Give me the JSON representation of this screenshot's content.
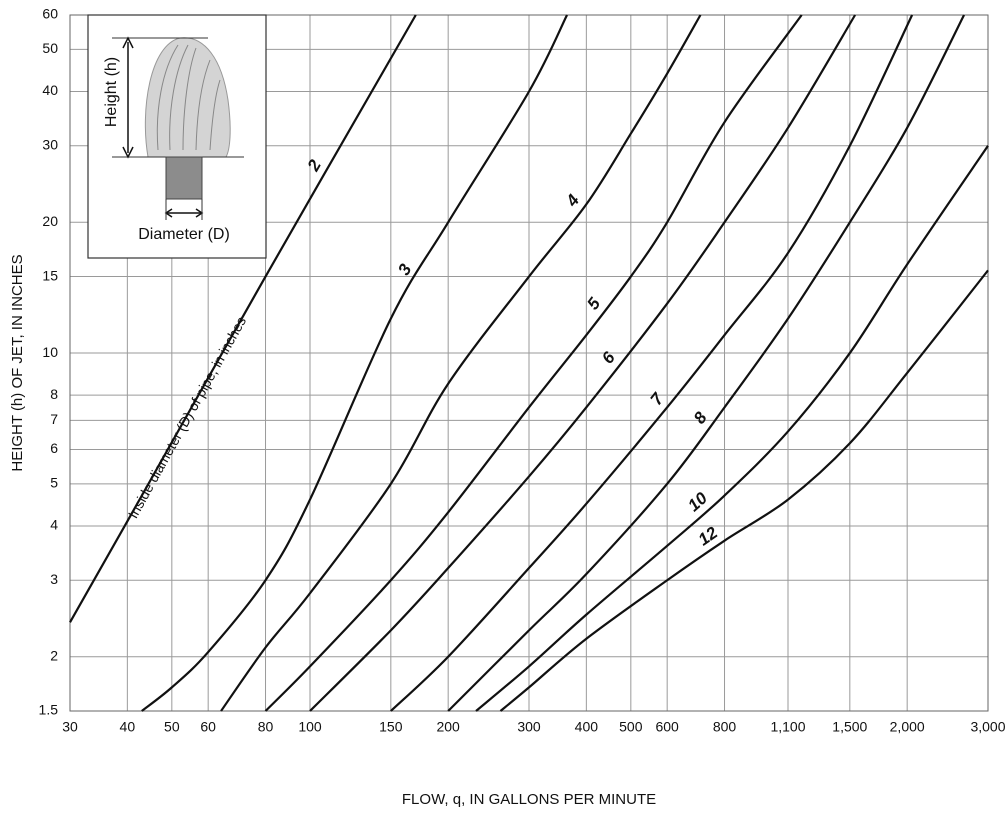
{
  "chart_data": {
    "type": "line",
    "x_label": "FLOW, q, IN GALLONS PER MINUTE",
    "y_label": "HEIGHT (h) OF JET, IN INCHES",
    "annotation": "Inside diameter (D) of pipe, in inches",
    "inset": {
      "height_label": "Height (h)",
      "diameter_label": "Diameter (D)"
    },
    "x_scale": "log",
    "y_scale": "log",
    "grid": true,
    "xlim": [
      30,
      3000
    ],
    "ylim": [
      1.5,
      60
    ],
    "xticks": [
      30,
      40,
      50,
      60,
      80,
      100,
      150,
      200,
      300,
      400,
      500,
      600,
      800,
      {
        "value": 1100,
        "label": "1,100"
      },
      {
        "value": 1500,
        "label": "1,500"
      },
      {
        "value": 2000,
        "label": "2,000"
      },
      {
        "value": 3000,
        "label": "3,000"
      }
    ],
    "yticks": [
      1.5,
      2,
      3,
      4,
      5,
      6,
      7,
      8,
      10,
      15,
      20,
      30,
      40,
      50,
      60
    ],
    "series": [
      {
        "name": "2",
        "color": "#111111",
        "x": [
          30,
          40,
          80,
          170
        ],
        "values": [
          2.4,
          4.1,
          15,
          60
        ]
      },
      {
        "name": "3",
        "color": "#111111",
        "x": [
          43,
          50,
          60,
          80,
          100,
          150,
          200,
          300,
          363
        ],
        "values": [
          1.5,
          1.7,
          2.05,
          3,
          4.6,
          12,
          20,
          40,
          60
        ]
      },
      {
        "name": "4",
        "color": "#111111",
        "x": [
          64,
          80,
          100,
          150,
          200,
          300,
          400,
          500,
          600,
          709
        ],
        "values": [
          1.5,
          2.1,
          2.8,
          5,
          8.5,
          15,
          22,
          32,
          44,
          60
        ]
      },
      {
        "name": "5",
        "color": "#111111",
        "x": [
          80,
          100,
          150,
          200,
          300,
          400,
          500,
          600,
          800,
          1178
        ],
        "values": [
          1.5,
          1.9,
          3,
          4.3,
          7.5,
          11,
          15,
          20,
          34,
          60
        ]
      },
      {
        "name": "6",
        "color": "#111111",
        "x": [
          100,
          150,
          200,
          300,
          400,
          600,
          800,
          1100,
          1540
        ],
        "values": [
          1.5,
          2.3,
          3.2,
          5.2,
          7.5,
          13,
          20,
          33,
          60
        ]
      },
      {
        "name": "7",
        "color": "#111111",
        "x": [
          150,
          200,
          300,
          400,
          600,
          800,
          1100,
          1500,
          2050
        ],
        "values": [
          1.5,
          2,
          3.2,
          4.5,
          7.5,
          11,
          17,
          30,
          60
        ]
      },
      {
        "name": "8",
        "color": "#111111",
        "x": [
          200,
          300,
          400,
          600,
          800,
          1100,
          1500,
          2000,
          2660
        ],
        "values": [
          1.5,
          2.3,
          3.1,
          5,
          7.5,
          12,
          20,
          33,
          60
        ]
      },
      {
        "name": "10",
        "color": "#111111",
        "x": [
          230,
          300,
          400,
          600,
          800,
          1100,
          1500,
          2000,
          3000
        ],
        "values": [
          1.5,
          1.9,
          2.5,
          3.6,
          4.7,
          6.6,
          10,
          16,
          30
        ]
      },
      {
        "name": "12",
        "color": "#111111",
        "x": [
          260,
          300,
          400,
          600,
          800,
          1100,
          1500,
          2000,
          3000
        ],
        "values": [
          1.5,
          1.7,
          2.2,
          3,
          3.7,
          4.6,
          6.2,
          9,
          15.5
        ]
      }
    ]
  }
}
